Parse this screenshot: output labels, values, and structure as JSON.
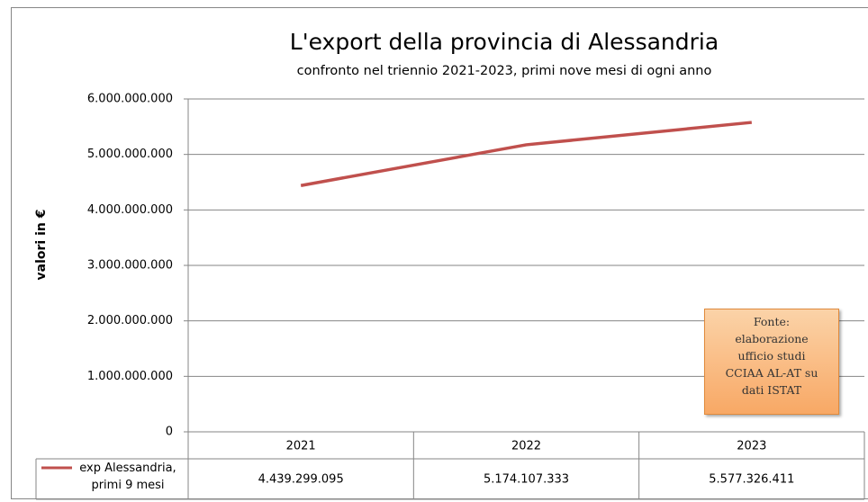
{
  "chart_data": {
    "type": "line",
    "title": "L'export della provincia di Alessandria",
    "subtitle": "confronto nel triennio 2021-2023, primi nove mesi di ogni anno",
    "y_label": "valori in €",
    "annotation": "Fonte: elaborazione ufficio studi CCIAA AL-AT su dati ISTAT",
    "categories": [
      "2021",
      "2022",
      "2023"
    ],
    "series": [
      {
        "name": "exp Alessandria, primi 9 mesi",
        "color": "#c0504d",
        "values": [
          4439299095,
          5174107333,
          5577326411
        ],
        "value_labels": [
          "4.439.299.095",
          "5.174.107.333",
          "5.577.326.411"
        ]
      }
    ],
    "ylim": [
      0,
      6000000000
    ],
    "yticks": [
      0,
      {
        "value": 1000000000,
        "label": "1.000.000.000"
      },
      {
        "value": 2000000000,
        "label": "2.000.000.000"
      },
      {
        "value": 3000000000,
        "label": "3.000.000.000"
      },
      {
        "value": 4000000000,
        "label": "4.000.000.000"
      },
      {
        "value": 5000000000,
        "label": "5.000.000.000"
      },
      {
        "value": 6000000000,
        "label": "6.000.000.000"
      }
    ],
    "grid": true,
    "data_table": true
  }
}
